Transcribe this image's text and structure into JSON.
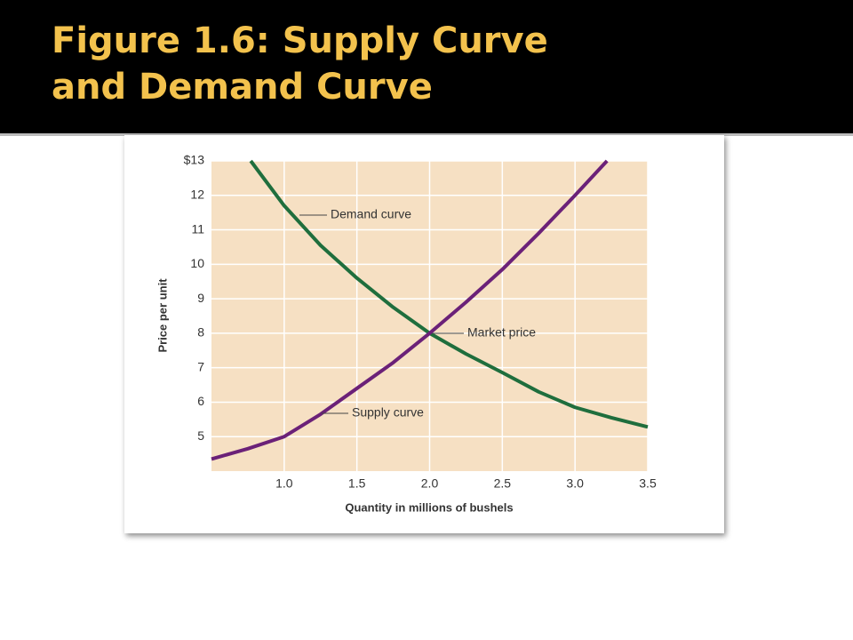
{
  "chart_data": {
    "type": "line",
    "title": "Figure 1.6: Supply Curve and Demand Curve",
    "xlabel": "Quantity in millions of bushels",
    "ylabel": "Price per unit",
    "xlim": [
      0.5,
      3.5
    ],
    "ylim": [
      4,
      13
    ],
    "xticks": [
      {
        "value": 1,
        "label": "1.0"
      },
      1.5,
      {
        "value": 2,
        "label": "2.0"
      },
      2.5,
      {
        "value": 3,
        "label": "3.0"
      },
      3.5
    ],
    "yticks": [
      5,
      6,
      7,
      8,
      9,
      10,
      11,
      12,
      {
        "value": 13,
        "label": "$13"
      }
    ],
    "grid": true,
    "series": [
      {
        "name": "Demand curve",
        "color": "#1f6e3d",
        "x": [
          0.77,
          1.0,
          1.25,
          1.5,
          1.75,
          2.0,
          2.25,
          2.5,
          2.75,
          3.0,
          3.25,
          3.5
        ],
        "values": [
          13,
          11.7,
          10.55,
          9.6,
          8.75,
          8,
          7.4,
          6.86,
          6.3,
          5.85,
          5.55,
          5.28
        ]
      },
      {
        "name": "Supply curve",
        "color": "#6b2178",
        "x": [
          0.5,
          0.75,
          1.0,
          1.25,
          1.5,
          1.75,
          2.0,
          2.25,
          2.5,
          2.75,
          3.0,
          3.22
        ],
        "values": [
          4.35,
          4.65,
          5.0,
          5.65,
          6.4,
          7.15,
          8,
          8.9,
          9.85,
          10.9,
          12.0,
          13
        ]
      }
    ],
    "annotations": [
      "Demand curve",
      "Market price",
      "Supply curve"
    ]
  }
}
